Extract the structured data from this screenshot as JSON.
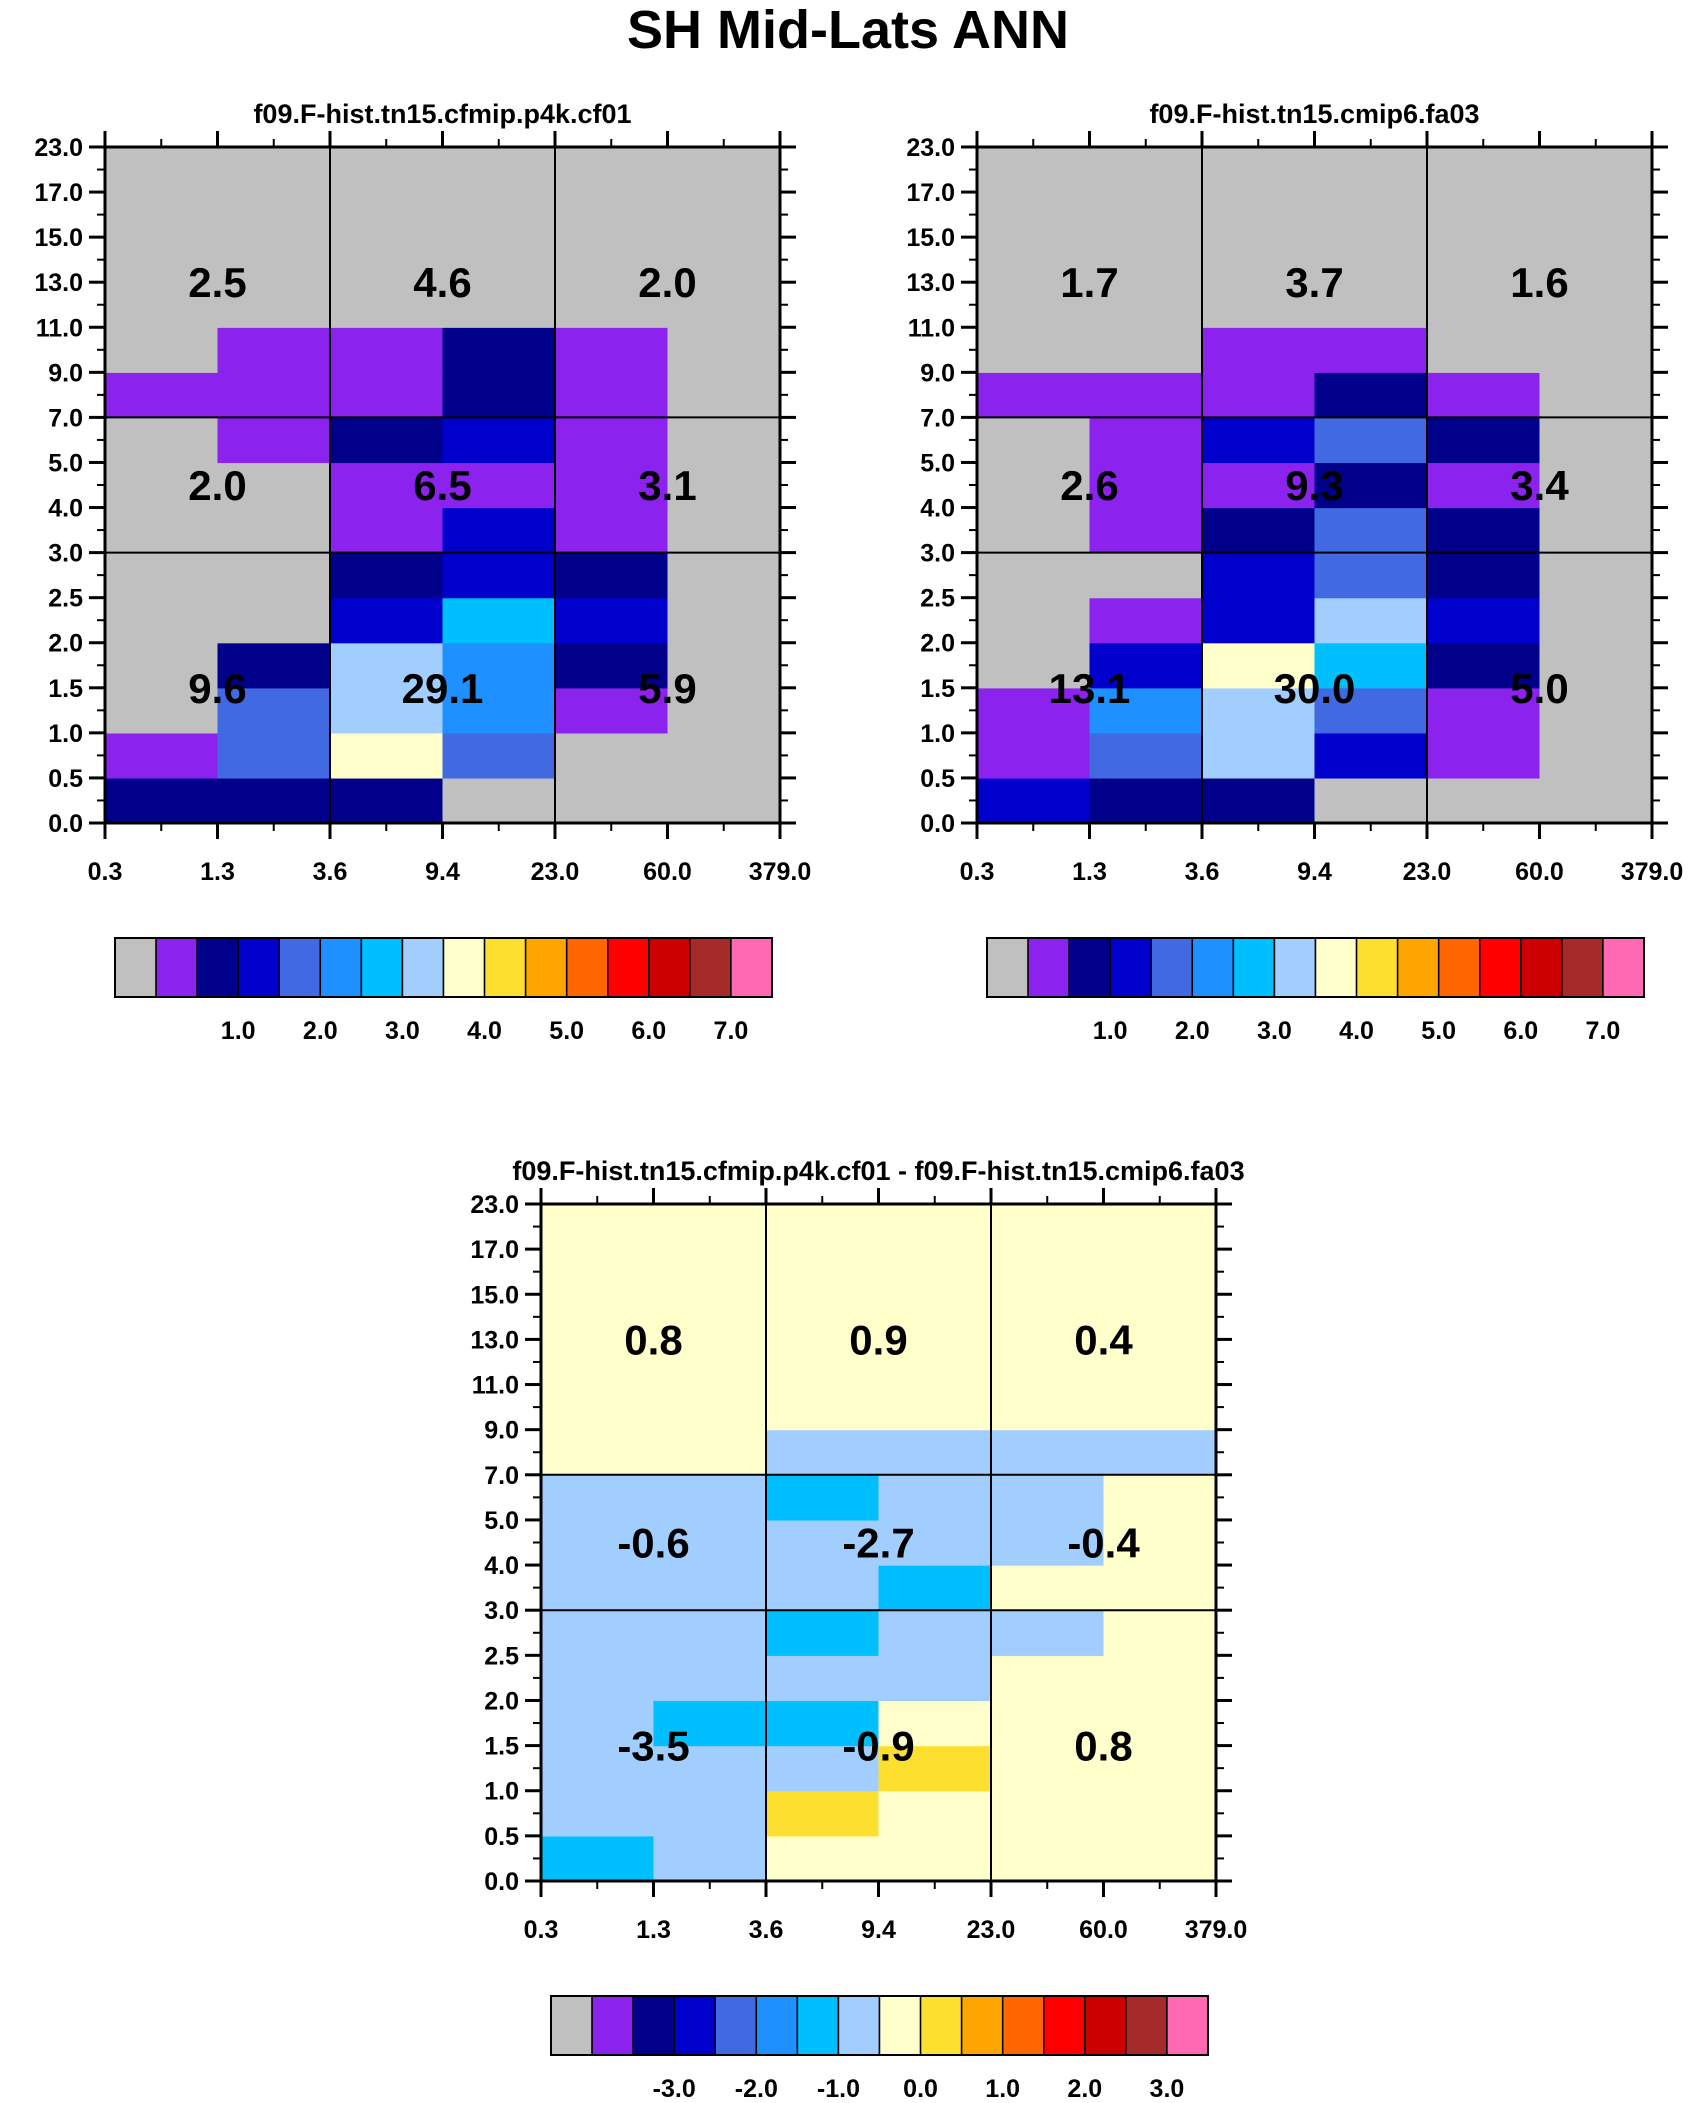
{
  "title": "SH Mid-Lats ANN",
  "colors": {
    "background": "#ffffff",
    "palette": [
      "#c0c0c0",
      "#8b22ee",
      "#00008b",
      "#0000cd",
      "#4169e1",
      "#1e90ff",
      "#00bfff",
      "#a2cdff",
      "#ffffcc",
      "#fde02f",
      "#ffa500",
      "#ff6600",
      "#ff0000",
      "#cd0000",
      "#a52a2a",
      "#ff69b4"
    ]
  },
  "chart_data": [
    {
      "type": "heatmap",
      "title": "f09.F-hist.tn15.cfmip.p4k.cf01",
      "x_edges": [
        "0.3",
        "1.3",
        "3.6",
        "9.4",
        "23.0",
        "60.0",
        "379.0"
      ],
      "y_edges": [
        "0.0",
        "0.5",
        "1.0",
        "1.5",
        "2.0",
        "2.5",
        "3.0",
        "4.0",
        "5.0",
        "7.0",
        "9.0",
        "11.0",
        "13.0",
        "15.0",
        "17.0",
        "23.0"
      ],
      "cell_color_index": [
        [
          2,
          2,
          2,
          0,
          0,
          0
        ],
        [
          1,
          4,
          8,
          4,
          0,
          0
        ],
        [
          0,
          4,
          7,
          5,
          1,
          0
        ],
        [
          0,
          2,
          7,
          5,
          2,
          0
        ],
        [
          0,
          0,
          3,
          6,
          3,
          0
        ],
        [
          0,
          0,
          2,
          3,
          2,
          0
        ],
        [
          0,
          0,
          1,
          3,
          1,
          0
        ],
        [
          0,
          0,
          1,
          1,
          1,
          0
        ],
        [
          0,
          1,
          2,
          3,
          1,
          0
        ],
        [
          1,
          1,
          1,
          2,
          1,
          0
        ],
        [
          0,
          1,
          1,
          2,
          1,
          0
        ],
        [
          0,
          0,
          0,
          0,
          0,
          0
        ],
        [
          0,
          0,
          0,
          0,
          0,
          0
        ],
        [
          0,
          0,
          0,
          0,
          0,
          0
        ],
        [
          0,
          0,
          0,
          0,
          0,
          0
        ]
      ],
      "box_values": [
        [
          "9.6",
          "29.1",
          "5.9"
        ],
        [
          "2.0",
          "6.5",
          "3.1"
        ],
        [
          "2.5",
          "4.6",
          "2.0"
        ]
      ],
      "colorbar": {
        "labels": [
          "1.0",
          "2.0",
          "3.0",
          "4.0",
          "5.0",
          "6.0",
          "7.0"
        ]
      }
    },
    {
      "type": "heatmap",
      "title": "f09.F-hist.tn15.cmip6.fa03",
      "x_edges": [
        "0.3",
        "1.3",
        "3.6",
        "9.4",
        "23.0",
        "60.0",
        "379.0"
      ],
      "y_edges": [
        "0.0",
        "0.5",
        "1.0",
        "1.5",
        "2.0",
        "2.5",
        "3.0",
        "4.0",
        "5.0",
        "7.0",
        "9.0",
        "11.0",
        "13.0",
        "15.0",
        "17.0",
        "23.0"
      ],
      "cell_color_index": [
        [
          3,
          2,
          2,
          0,
          0,
          0
        ],
        [
          1,
          4,
          7,
          3,
          1,
          0
        ],
        [
          1,
          5,
          7,
          4,
          1,
          0
        ],
        [
          0,
          3,
          8,
          6,
          2,
          0
        ],
        [
          0,
          1,
          3,
          7,
          3,
          0
        ],
        [
          0,
          0,
          3,
          4,
          2,
          0
        ],
        [
          0,
          1,
          2,
          4,
          2,
          0
        ],
        [
          0,
          1,
          1,
          2,
          1,
          0
        ],
        [
          0,
          1,
          3,
          4,
          2,
          0
        ],
        [
          1,
          1,
          1,
          2,
          1,
          0
        ],
        [
          0,
          0,
          1,
          1,
          0,
          0
        ],
        [
          0,
          0,
          0,
          0,
          0,
          0
        ],
        [
          0,
          0,
          0,
          0,
          0,
          0
        ],
        [
          0,
          0,
          0,
          0,
          0,
          0
        ],
        [
          0,
          0,
          0,
          0,
          0,
          0
        ]
      ],
      "box_values": [
        [
          "13.1",
          "30.0",
          "5.0"
        ],
        [
          "2.6",
          "9.3",
          "3.4"
        ],
        [
          "1.7",
          "3.7",
          "1.6"
        ]
      ],
      "colorbar": {
        "labels": [
          "1.0",
          "2.0",
          "3.0",
          "4.0",
          "5.0",
          "6.0",
          "7.0"
        ]
      }
    },
    {
      "type": "heatmap",
      "title": "f09.F-hist.tn15.cfmip.p4k.cf01 - f09.F-hist.tn15.cmip6.fa03",
      "x_edges": [
        "0.3",
        "1.3",
        "3.6",
        "9.4",
        "23.0",
        "60.0",
        "379.0"
      ],
      "y_edges": [
        "0.0",
        "0.5",
        "1.0",
        "1.5",
        "2.0",
        "2.5",
        "3.0",
        "4.0",
        "5.0",
        "7.0",
        "9.0",
        "11.0",
        "13.0",
        "15.0",
        "17.0",
        "23.0"
      ],
      "cell_color_index": [
        [
          6,
          7,
          8,
          8,
          8,
          8
        ],
        [
          7,
          7,
          9,
          8,
          8,
          8
        ],
        [
          7,
          7,
          7,
          9,
          8,
          8
        ],
        [
          7,
          6,
          6,
          8,
          8,
          8
        ],
        [
          7,
          7,
          7,
          7,
          8,
          8
        ],
        [
          7,
          7,
          6,
          7,
          7,
          8
        ],
        [
          7,
          7,
          7,
          6,
          8,
          8
        ],
        [
          7,
          7,
          7,
          7,
          7,
          8
        ],
        [
          7,
          7,
          6,
          7,
          7,
          8
        ],
        [
          8,
          8,
          7,
          7,
          7,
          7
        ],
        [
          8,
          8,
          8,
          8,
          8,
          8
        ],
        [
          8,
          8,
          8,
          8,
          8,
          8
        ],
        [
          8,
          8,
          8,
          8,
          8,
          8
        ],
        [
          8,
          8,
          8,
          8,
          8,
          8
        ],
        [
          8,
          8,
          8,
          8,
          8,
          8
        ]
      ],
      "box_values": [
        [
          "-3.5",
          "-0.9",
          "0.8"
        ],
        [
          "-0.6",
          "-2.7",
          "-0.4"
        ],
        [
          "0.8",
          "0.9",
          "0.4"
        ]
      ],
      "colorbar": {
        "labels": [
          "-3.0",
          "-2.0",
          "-1.0",
          "0.0",
          "1.0",
          "2.0",
          "3.0"
        ]
      }
    }
  ]
}
